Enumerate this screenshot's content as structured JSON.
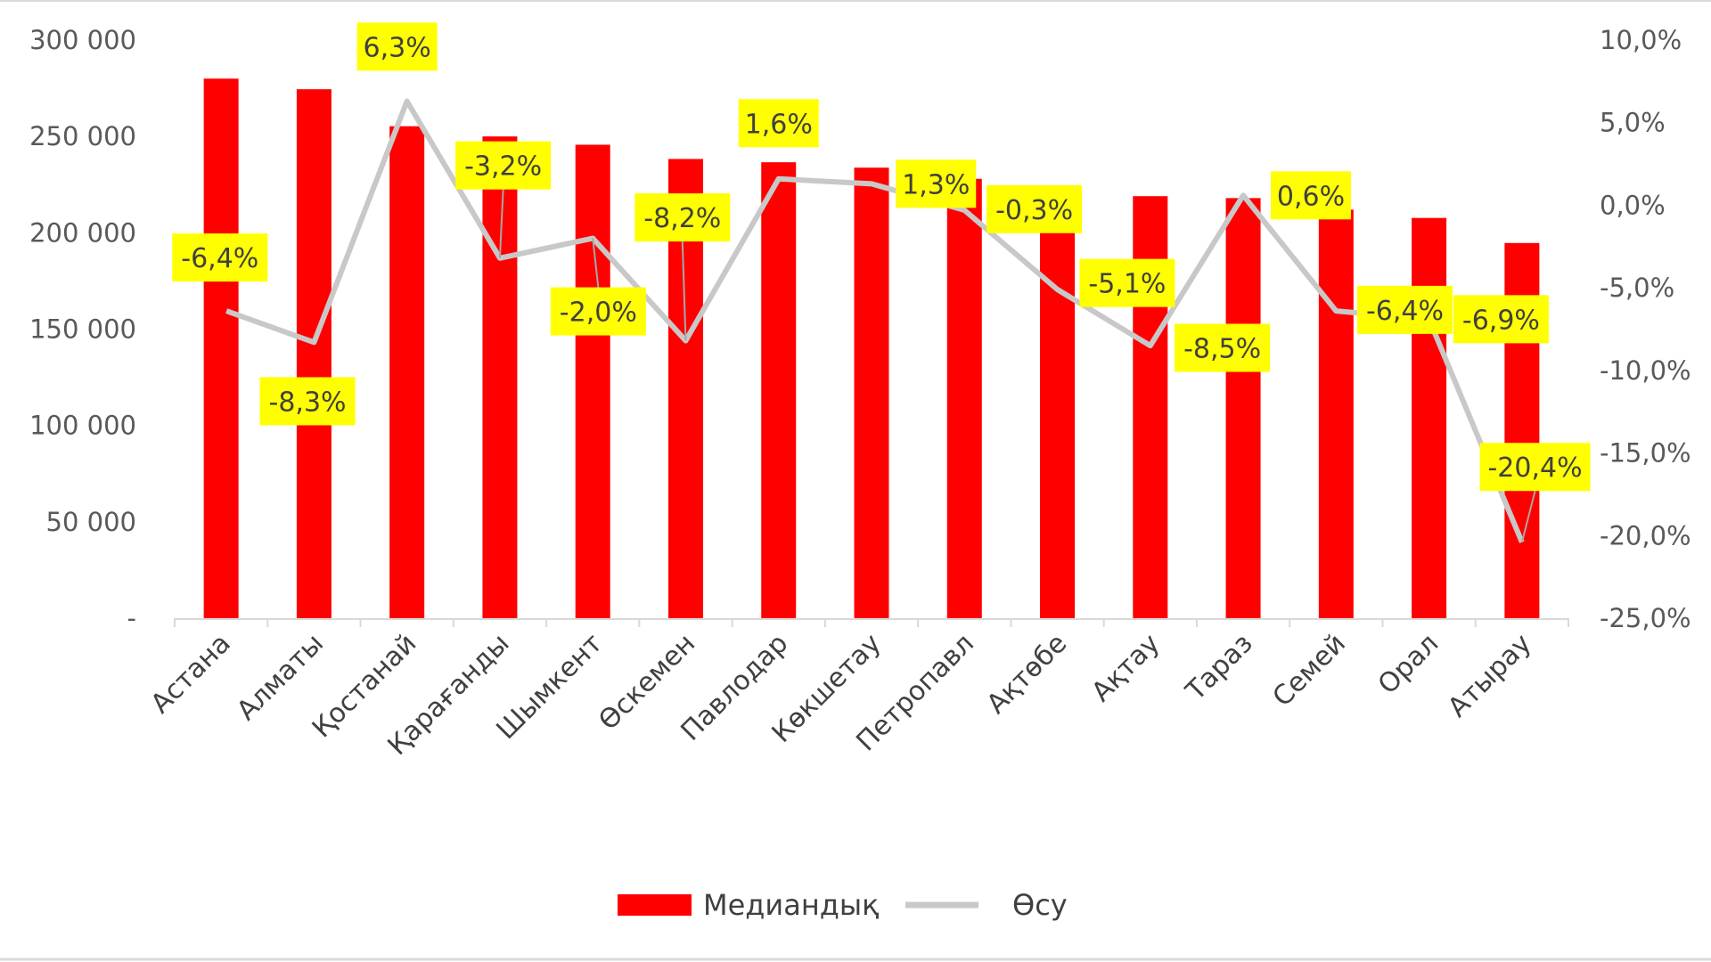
{
  "chart_data": {
    "type": "bar+line",
    "categories": [
      "Астана",
      "Алматы",
      "Қостанай",
      "Қарағанды",
      "Шымкент",
      "Өскемен",
      "Павлодар",
      "Көкшетау",
      "Петропавл",
      "Ақтөбе",
      "Ақтау",
      "Тараз",
      "Семей",
      "Орал",
      "Атырау"
    ],
    "series": [
      {
        "name": "Медиандық",
        "type": "bar",
        "axis": "left",
        "color": "#ff0000",
        "values": [
          280000,
          274500,
          255300,
          250000,
          245700,
          238300,
          236600,
          233800,
          228000,
          222000,
          219000,
          218000,
          212000,
          207700,
          194700
        ]
      },
      {
        "name": "Өсу",
        "type": "line",
        "axis": "right",
        "color": "#c8c8c8",
        "values": [
          -6.4,
          -8.3,
          6.3,
          -3.2,
          -2.0,
          -8.2,
          1.6,
          1.3,
          -0.3,
          -5.1,
          -8.5,
          0.6,
          -6.4,
          -6.9,
          -20.4
        ],
        "labels": [
          "-6,4%",
          "-8,3%",
          "6,3%",
          "-3,2%",
          "-2,0%",
          "-8,2%",
          "1,6%",
          "1,3%",
          "-0,3%",
          "-5,1%",
          "-8,5%",
          "0,6%",
          "-6,4%",
          "-6,9%",
          "-20,4%"
        ]
      }
    ],
    "left_axis": {
      "ylim": [
        0,
        300000
      ],
      "ticks": [
        "-",
        "50 000",
        "100 000",
        "150 000",
        "200 000",
        "250 000",
        "300 000"
      ]
    },
    "right_axis": {
      "ylim": [
        -25,
        10
      ],
      "ticks": [
        "-25,0%",
        "-20,0%",
        "-15,0%",
        "-10,0%",
        "-5,0%",
        "0,0%",
        "5,0%",
        "10,0%"
      ]
    },
    "label_box_color": "#ffff00",
    "legend": {
      "position": "bottom",
      "entries": [
        "Медиандық",
        "Өсу"
      ]
    },
    "grid": false
  }
}
